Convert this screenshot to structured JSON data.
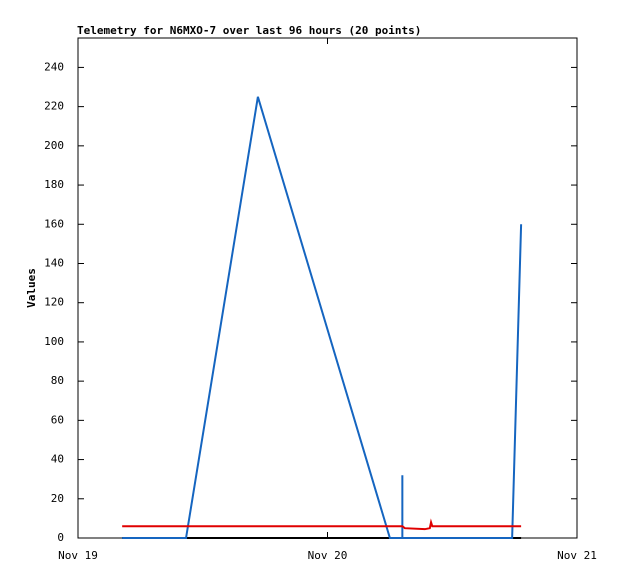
{
  "chart_data": {
    "type": "line",
    "title": "Telemetry for N6MXO-7 over last 96 hours (20 points)",
    "y_label": "Values",
    "xlim": [
      19,
      21
    ],
    "xticks": [
      {
        "value": 19,
        "label": "Nov 19"
      },
      {
        "value": 20,
        "label": "Nov 20"
      },
      {
        "value": 21,
        "label": "Nov 21"
      }
    ],
    "ylim": [
      0,
      255
    ],
    "yticks": [
      0,
      20,
      40,
      60,
      80,
      100,
      120,
      140,
      160,
      180,
      200,
      220,
      240
    ],
    "series": [
      {
        "color": "#000000",
        "x": [
          19.177,
          20.776
        ],
        "values": [
          0,
          0
        ]
      },
      {
        "color": "#1565c0",
        "x": [
          19.177,
          19.433,
          19.721,
          20.25,
          20.3,
          20.3,
          20.3,
          20.74,
          20.776
        ],
        "values": [
          0,
          0,
          225,
          0,
          0,
          32,
          0,
          0,
          160
        ]
      },
      {
        "color": "#e00000",
        "x": [
          19.177,
          20.3,
          20.31,
          20.39,
          20.41,
          20.415,
          20.42,
          20.776
        ],
        "values": [
          6,
          6,
          5,
          4.5,
          5,
          8,
          6,
          6
        ]
      }
    ]
  }
}
